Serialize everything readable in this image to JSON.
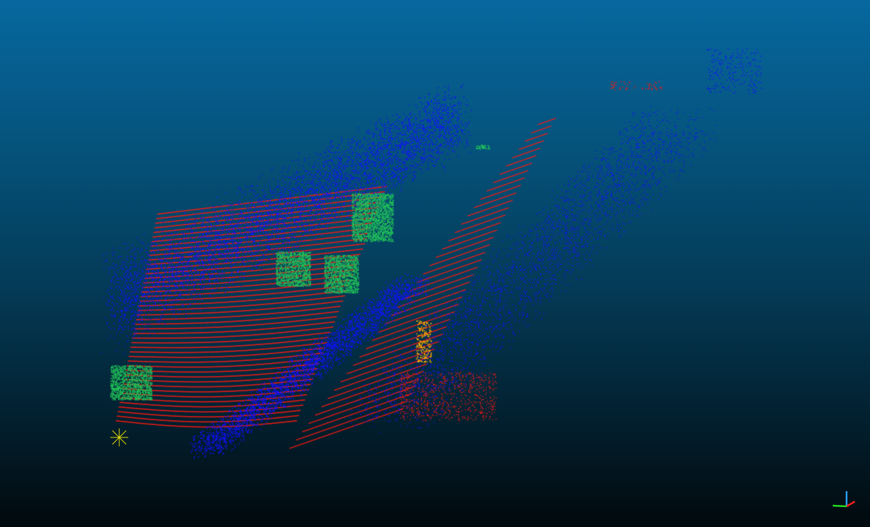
{
  "viewer": {
    "background_top": "#07689f",
    "background_bottom": "#01090d"
  },
  "legend": {
    "classes": [
      {
        "id": "ground",
        "color": "#ff1a12"
      },
      {
        "id": "unclassified",
        "color": "#1212ff"
      },
      {
        "id": "vehicle",
        "color": "#22c45a"
      },
      {
        "id": "pedestrian",
        "color": "#ffb000"
      }
    ]
  },
  "overlays": {
    "pivot_icon": "asterisk-pivot-icon",
    "axes_icon": "xyz-axes-triad-icon",
    "axis_colors": {
      "x": "#ff2020",
      "y": "#20e020",
      "z": "#2aa0ff"
    },
    "pivot_color": "#e8e000"
  }
}
